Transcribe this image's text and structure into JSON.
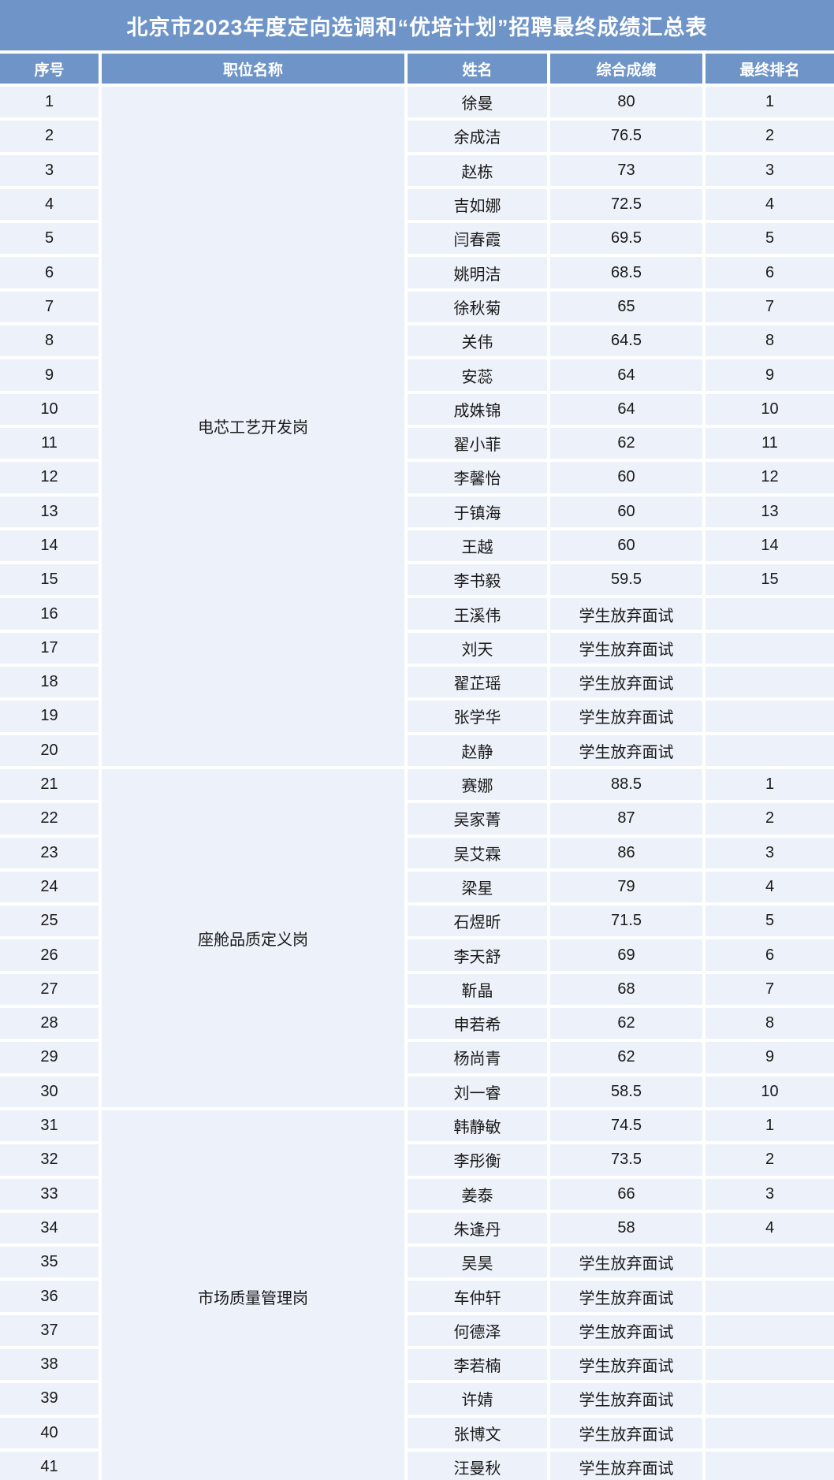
{
  "title": "北京市2023年度定向选调和“优培计划”招聘最终成绩汇总表",
  "columns": [
    "序号",
    "职位名称",
    "姓名",
    "综合成绩",
    "最终排名"
  ],
  "abandoned_label": "学生放弃面试",
  "colors": {
    "header_blue": "#6E94C8",
    "row_background": "#EDF1F9",
    "gap_white": "#FFFFFF",
    "header_text": "#FFFFFF",
    "body_text": "#1A1A1A"
  },
  "groups": [
    {
      "position": "电芯工艺开发岗",
      "rows": [
        {
          "no": "1",
          "name": "徐曼",
          "score": "80",
          "rank": "1"
        },
        {
          "no": "2",
          "name": "余成洁",
          "score": "76.5",
          "rank": "2"
        },
        {
          "no": "3",
          "name": "赵栋",
          "score": "73",
          "rank": "3"
        },
        {
          "no": "4",
          "name": "吉如娜",
          "score": "72.5",
          "rank": "4"
        },
        {
          "no": "5",
          "name": "闫春霞",
          "score": "69.5",
          "rank": "5"
        },
        {
          "no": "6",
          "name": "姚明洁",
          "score": "68.5",
          "rank": "6"
        },
        {
          "no": "7",
          "name": "徐秋菊",
          "score": "65",
          "rank": "7"
        },
        {
          "no": "8",
          "name": "关伟",
          "score": "64.5",
          "rank": "8"
        },
        {
          "no": "9",
          "name": "安蕊",
          "score": "64",
          "rank": "9"
        },
        {
          "no": "10",
          "name": "成姝锦",
          "score": "64",
          "rank": "10"
        },
        {
          "no": "11",
          "name": "翟小菲",
          "score": "62",
          "rank": "11"
        },
        {
          "no": "12",
          "name": "李馨怡",
          "score": "60",
          "rank": "12"
        },
        {
          "no": "13",
          "name": "于镇海",
          "score": "60",
          "rank": "13"
        },
        {
          "no": "14",
          "name": "王越",
          "score": "60",
          "rank": "14"
        },
        {
          "no": "15",
          "name": "李书毅",
          "score": "59.5",
          "rank": "15"
        },
        {
          "no": "16",
          "name": "王溪伟",
          "score": "学生放弃面试",
          "rank": ""
        },
        {
          "no": "17",
          "name": "刘天",
          "score": "学生放弃面试",
          "rank": ""
        },
        {
          "no": "18",
          "name": "翟芷瑶",
          "score": "学生放弃面试",
          "rank": ""
        },
        {
          "no": "19",
          "name": "张学华",
          "score": "学生放弃面试",
          "rank": ""
        },
        {
          "no": "20",
          "name": "赵静",
          "score": "学生放弃面试",
          "rank": ""
        }
      ]
    },
    {
      "position": "座舱品质定义岗",
      "rows": [
        {
          "no": "21",
          "name": "赛娜",
          "score": "88.5",
          "rank": "1"
        },
        {
          "no": "22",
          "name": "吴家菁",
          "score": "87",
          "rank": "2"
        },
        {
          "no": "23",
          "name": "吴艾霖",
          "score": "86",
          "rank": "3"
        },
        {
          "no": "24",
          "name": "梁星",
          "score": "79",
          "rank": "4"
        },
        {
          "no": "25",
          "name": "石煜昕",
          "score": "71.5",
          "rank": "5"
        },
        {
          "no": "26",
          "name": "李天舒",
          "score": "69",
          "rank": "6"
        },
        {
          "no": "27",
          "name": "靳晶",
          "score": "68",
          "rank": "7"
        },
        {
          "no": "28",
          "name": "申若希",
          "score": "62",
          "rank": "8"
        },
        {
          "no": "29",
          "name": "杨尚青",
          "score": "62",
          "rank": "9"
        },
        {
          "no": "30",
          "name": "刘一睿",
          "score": "58.5",
          "rank": "10"
        }
      ]
    },
    {
      "position": "市场质量管理岗",
      "rows": [
        {
          "no": "31",
          "name": "韩静敏",
          "score": "74.5",
          "rank": "1"
        },
        {
          "no": "32",
          "name": "李彤衡",
          "score": "73.5",
          "rank": "2"
        },
        {
          "no": "33",
          "name": "姜泰",
          "score": "66",
          "rank": "3"
        },
        {
          "no": "34",
          "name": "朱逢丹",
          "score": "58",
          "rank": "4"
        },
        {
          "no": "35",
          "name": "吴昊",
          "score": "学生放弃面试",
          "rank": ""
        },
        {
          "no": "36",
          "name": "车仲轩",
          "score": "学生放弃面试",
          "rank": ""
        },
        {
          "no": "37",
          "name": "何德泽",
          "score": "学生放弃面试",
          "rank": ""
        },
        {
          "no": "38",
          "name": "李若楠",
          "score": "学生放弃面试",
          "rank": ""
        },
        {
          "no": "39",
          "name": "许婧",
          "score": "学生放弃面试",
          "rank": ""
        },
        {
          "no": "40",
          "name": "张博文",
          "score": "学生放弃面试",
          "rank": ""
        },
        {
          "no": "41",
          "name": "汪曼秋",
          "score": "学生放弃面试",
          "rank": ""
        }
      ]
    }
  ]
}
